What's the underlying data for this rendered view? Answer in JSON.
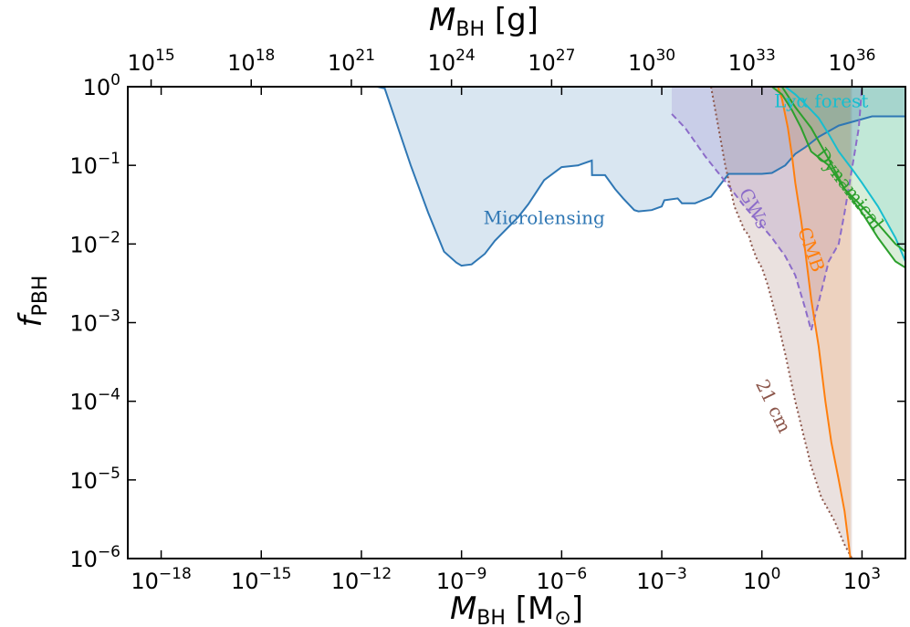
{
  "chart_data": {
    "type": "area",
    "title": "",
    "xlabel": "M",
    "xlabel_sub": "BH",
    "xlabel_unit_open": " [M",
    "xlabel_unit_sub": "⊙",
    "xlabel_unit_close": "]",
    "x2label": "M",
    "x2label_sub": "BH",
    "x2label_unit": " [g]",
    "ylabel": "f",
    "ylabel_sub": "PBH",
    "xscale": "log",
    "yscale": "log",
    "xlim": [
      1e-19,
      20000
    ],
    "ylim": [
      1e-06,
      1
    ],
    "x_ticks": [
      {
        "base": "10",
        "exp": "−18",
        "value": 1e-18
      },
      {
        "base": "10",
        "exp": "−15",
        "value": 1e-15
      },
      {
        "base": "10",
        "exp": "−12",
        "value": 1e-12
      },
      {
        "base": "10",
        "exp": "−9",
        "value": 1e-09
      },
      {
        "base": "10",
        "exp": "−6",
        "value": 1e-06
      },
      {
        "base": "10",
        "exp": "−3",
        "value": 0.001
      },
      {
        "base": "10",
        "exp": "0",
        "value": 1
      },
      {
        "base": "10",
        "exp": "3",
        "value": 1000
      }
    ],
    "x2_ticks": [
      {
        "base": "10",
        "exp": "15",
        "value_g": 1000000000000000.0
      },
      {
        "base": "10",
        "exp": "18",
        "value_g": 1e+18
      },
      {
        "base": "10",
        "exp": "21",
        "value_g": 1e+21
      },
      {
        "base": "10",
        "exp": "24",
        "value_g": 1e+24
      },
      {
        "base": "10",
        "exp": "27",
        "value_g": 1e+27
      },
      {
        "base": "10",
        "exp": "30",
        "value_g": 1e+30
      },
      {
        "base": "10",
        "exp": "33",
        "value_g": 1e+33
      },
      {
        "base": "10",
        "exp": "36",
        "value_g": 1e+36
      }
    ],
    "solar_mass_g": 2e+33,
    "y_ticks": [
      {
        "base": "10",
        "exp": "0",
        "value": 1
      },
      {
        "base": "10",
        "exp": "−1",
        "value": 0.1
      },
      {
        "base": "10",
        "exp": "−2",
        "value": 0.01
      },
      {
        "base": "10",
        "exp": "−3",
        "value": 0.001
      },
      {
        "base": "10",
        "exp": "−4",
        "value": 0.0001
      },
      {
        "base": "10",
        "exp": "−5",
        "value": 1e-05
      },
      {
        "base": "10",
        "exp": "−6",
        "value": 1e-06
      }
    ],
    "top_band": {
      "ymin": 1,
      "color": "#bdbdbd"
    },
    "series": [
      {
        "name": "Microlensing",
        "color": "#2f77b4",
        "fill": "#2f77b4",
        "fill_opacity": 0.18,
        "line_style": "solid",
        "x": [
          3e-12,
          5e-12,
          1e-11,
          3e-11,
          1e-10,
          3e-10,
          7e-10,
          1e-09,
          2e-09,
          5e-09,
          1e-08,
          5e-08,
          1e-07,
          2e-07,
          3e-07,
          1e-06,
          3e-06,
          3.1e-06,
          8e-06,
          8.1e-06,
          2e-05,
          4e-05,
          7e-05,
          0.00015,
          0.0002,
          0.0005,
          0.001,
          0.0012,
          0.003,
          0.004,
          0.01,
          0.03,
          0.1,
          1,
          2,
          5,
          10,
          20,
          50,
          200,
          2000,
          20000
        ],
        "y": [
          1,
          0.95,
          0.4,
          0.1,
          0.025,
          0.008,
          0.0058,
          0.0053,
          0.0055,
          0.0075,
          0.011,
          0.022,
          0.032,
          0.05,
          0.065,
          0.095,
          0.1,
          0.1,
          0.115,
          0.075,
          0.075,
          0.05,
          0.038,
          0.027,
          0.026,
          0.027,
          0.03,
          0.036,
          0.038,
          0.033,
          0.033,
          0.04,
          0.078,
          0.078,
          0.08,
          0.1,
          0.14,
          0.17,
          0.23,
          0.32,
          0.42,
          0.42
        ]
      },
      {
        "name": "GWs",
        "color": "#8c6cc9",
        "fill": "#8c6cc9",
        "fill_opacity": 0.2,
        "line_style": "dashed",
        "x": [
          0.002,
          0.005,
          0.02,
          0.1,
          0.3,
          1,
          2,
          5,
          10,
          20,
          30,
          50,
          100,
          200,
          300,
          500,
          800,
          1000
        ],
        "y": [
          0.45,
          0.3,
          0.13,
          0.055,
          0.03,
          0.017,
          0.012,
          0.007,
          0.004,
          0.0015,
          0.0008,
          0.0018,
          0.006,
          0.01,
          0.025,
          0.09,
          0.3,
          1
        ]
      },
      {
        "name": "21 cm",
        "color": "#8c564b",
        "fill": "#8c564b",
        "fill_opacity": 0.18,
        "line_style": "dotted",
        "x": [
          0.03,
          0.08,
          0.15,
          0.3,
          0.4,
          0.5,
          0.7,
          1,
          1.5,
          3,
          5,
          10,
          20,
          30,
          60,
          150,
          300,
          500
        ],
        "y": [
          1,
          0.1,
          0.03,
          0.015,
          0.013,
          0.0095,
          0.0065,
          0.005,
          0.003,
          0.001,
          0.0004,
          0.0001,
          3e-05,
          1.5e-05,
          6e-06,
          3e-06,
          1.5e-06,
          1e-06
        ]
      },
      {
        "name": "CMB",
        "color": "#ff7f0e",
        "fill": "#ff7f0e",
        "fill_opacity": 0.15,
        "line_style": "solid",
        "x": [
          3,
          4,
          6,
          8,
          10,
          15,
          20,
          30,
          50,
          80,
          120,
          200,
          300,
          400,
          450
        ],
        "y": [
          1,
          0.7,
          0.3,
          0.13,
          0.06,
          0.02,
          0.008,
          0.002,
          0.0005,
          0.0001,
          3e-05,
          1e-05,
          4e-06,
          1.5e-06,
          1e-06
        ]
      },
      {
        "name": "Dynamical",
        "color": "#2ca02c",
        "fill": "#2ca02c",
        "fill_opacity": 0.18,
        "line_style": "solid",
        "x": [
          2,
          4,
          8,
          15,
          30,
          100,
          300,
          1000,
          3000,
          10000,
          20000
        ],
        "y": [
          1,
          0.8,
          0.5,
          0.3,
          0.15,
          0.1,
          0.05,
          0.025,
          0.012,
          0.006,
          0.005
        ]
      },
      {
        "name": "Lyα forest",
        "color": "#17becf",
        "fill": "#17becf",
        "fill_opacity": 0.12,
        "line_style": "solid",
        "x": [
          5,
          10,
          20,
          50,
          100,
          200,
          500,
          1000,
          3000,
          10000,
          20000
        ],
        "y": [
          1,
          0.8,
          0.6,
          0.4,
          0.25,
          0.15,
          0.09,
          0.06,
          0.03,
          0.012,
          0.006
        ]
      }
    ],
    "extra_lines": [
      {
        "name": "Dynamical upper",
        "color": "#2ca02c",
        "x": [
          4,
          10,
          30,
          100,
          300,
          1000,
          3000,
          10000,
          20000
        ],
        "y": [
          1,
          0.55,
          0.3,
          0.12,
          0.05,
          0.03,
          0.018,
          0.01,
          0.008
        ]
      }
    ],
    "annotations": [
      {
        "text": "Microlensing",
        "x": 3e-07,
        "y": 0.018,
        "color": "#2f77b4",
        "rotate": 0
      },
      {
        "text": "GWs",
        "x": 0.4,
        "y": 0.026,
        "color": "#8c6cc9",
        "rotate": 62
      },
      {
        "text": "CMB",
        "x": 20,
        "y": 0.008,
        "color": "#ff7f0e",
        "rotate": 70
      },
      {
        "text": "21 cm",
        "x": 1.5,
        "y": 8e-05,
        "color": "#8c564b",
        "rotate": 64
      },
      {
        "text": "Dynamical",
        "x": 300,
        "y": 0.045,
        "color": "#2ca02c",
        "rotate": 52
      },
      {
        "text": "Lyα forest",
        "x": 60,
        "y": 0.55,
        "color": "#17becf",
        "rotate": 0
      }
    ]
  }
}
